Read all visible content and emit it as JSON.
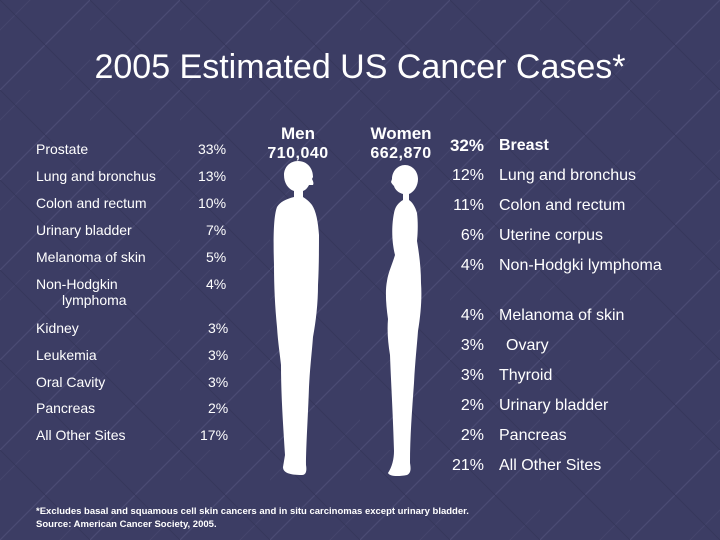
{
  "title": "2005 Estimated US Cancer Cases*",
  "chart_data": {
    "type": "table",
    "title": "2005 Estimated US Cancer Cases*",
    "series": [
      {
        "name": "Men",
        "total": "710,040",
        "rows": [
          {
            "site": "Prostate",
            "pct": "33%",
            "value": 33
          },
          {
            "site": "Lung and bronchus",
            "pct": "13%",
            "value": 13
          },
          {
            "site": "Colon and rectum",
            "pct": "10%",
            "value": 10
          },
          {
            "site": "Urinary bladder",
            "pct": "7%",
            "value": 7
          },
          {
            "site": "Melanoma of skin",
            "pct": "5%",
            "value": 5
          },
          {
            "site": "Non-Hodgkin lymphoma",
            "pct": "4%",
            "value": 4
          },
          {
            "site": "Kidney",
            "pct": "3%",
            "value": 3
          },
          {
            "site": "Leukemia",
            "pct": "3%",
            "value": 3
          },
          {
            "site": "Oral Cavity",
            "pct": "3%",
            "value": 3
          },
          {
            "site": "Pancreas",
            "pct": "2%",
            "value": 2
          },
          {
            "site": "All Other Sites",
            "pct": "17%",
            "value": 17
          }
        ]
      },
      {
        "name": "Women",
        "total": "662,870",
        "rows": [
          {
            "site": "Breast",
            "pct": "32%",
            "value": 32
          },
          {
            "site": "Lung and bronchus",
            "pct": "12%",
            "value": 12
          },
          {
            "site": "Colon and rectum",
            "pct": "11%",
            "value": 11
          },
          {
            "site": "Uterine corpus",
            "pct": "6%",
            "value": 6
          },
          {
            "site": "Non-Hodgki lymphoma",
            "pct": "4%",
            "value": 4
          },
          {
            "site": "Melanoma of skin",
            "pct": "4%",
            "value": 4
          },
          {
            "site": "Ovary",
            "pct": "3%",
            "value": 3
          },
          {
            "site": "Thyroid",
            "pct": "3%",
            "value": 3
          },
          {
            "site": "Urinary bladder",
            "pct": "2%",
            "value": 2
          },
          {
            "site": "Pancreas",
            "pct": "2%",
            "value": 2
          },
          {
            "site": "All Other Sites",
            "pct": "21%",
            "value": 21
          }
        ]
      }
    ]
  },
  "footnote": {
    "line1": "*Excludes basal and squamous cell skin cancers and in situ carcinomas except urinary bladder.",
    "line2": "Source: American Cancer Society, 2005."
  },
  "colors": {
    "background": "#3c3d64",
    "text": "#ffffff",
    "figure": "#ffffff"
  },
  "icons": {
    "men": "male-silhouette-icon",
    "women": "female-silhouette-icon"
  }
}
